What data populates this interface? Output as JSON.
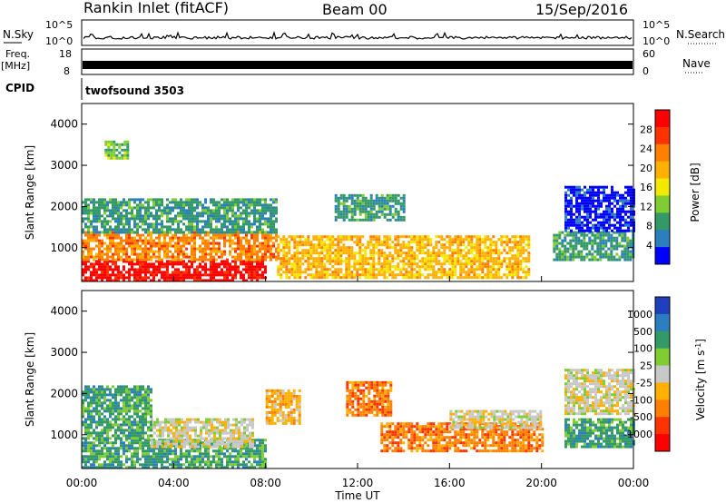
{
  "header": {
    "station": "Rankin Inlet (fitACF)",
    "beam": "Beam 00",
    "date": "15/Sep/2016"
  },
  "top_panels": {
    "nsky_label": "N.Sky",
    "nsearch_label": "N.Search",
    "nsky_ticks": [
      "10^5",
      "10^0"
    ],
    "nsky_right_ticks": [
      "10^5",
      "10^0"
    ],
    "freq_label_line1": "Freq.",
    "freq_label_line2": "[MHz]",
    "freq_ticks": [
      "18",
      "8"
    ],
    "nave_label": "Nave",
    "nave_ticks": [
      "60",
      "0"
    ],
    "cpid_label": "CPID",
    "cpid_value": "twofsound 3503"
  },
  "chart_data": [
    {
      "type": "heatmap",
      "title": "",
      "ylabel": "Slant Range [km]",
      "xlabel": "",
      "ylim": [
        180,
        4500
      ],
      "yticks": [
        "1000",
        "2000",
        "3000",
        "4000"
      ],
      "ytick_values": [
        1000,
        2000,
        3000,
        4000
      ],
      "colorbar_label": "Power [dB]",
      "colorbar_ticks": [
        "28",
        "24",
        "20",
        "16",
        "12",
        "8",
        "4"
      ],
      "colors": [
        "#ff0000",
        "#ff3300",
        "#ff7f00",
        "#ffb000",
        "#f2e800",
        "#80cc33",
        "#339966",
        "#2b7fbf",
        "#0000ff"
      ],
      "regions": [
        {
          "t": [
            0.0,
            8.0
          ],
          "r": [
            180,
            700
          ],
          "level": 0
        },
        {
          "t": [
            0.0,
            8.5
          ],
          "r": [
            700,
            1400
          ],
          "level": 2
        },
        {
          "t": [
            0.0,
            8.5
          ],
          "r": [
            1400,
            2200
          ],
          "level": 6
        },
        {
          "t": [
            1.0,
            2.0
          ],
          "r": [
            3200,
            3600
          ],
          "level": 5
        },
        {
          "t": [
            8.5,
            19.5
          ],
          "r": [
            300,
            1300
          ],
          "level": 3
        },
        {
          "t": [
            11.0,
            14.0
          ],
          "r": [
            1700,
            2300
          ],
          "level": 6
        },
        {
          "t": [
            20.5,
            24.0
          ],
          "r": [
            700,
            1400
          ],
          "level": 6
        },
        {
          "t": [
            21.0,
            24.0
          ],
          "r": [
            1400,
            2500
          ],
          "level": 8
        }
      ]
    },
    {
      "type": "heatmap",
      "title": "",
      "ylabel": "Slant Range [km]",
      "xlabel": "Time UT",
      "xlim": [
        0,
        24
      ],
      "ylim": [
        180,
        4500
      ],
      "xticks": [
        "00:00",
        "04:00",
        "08:00",
        "12:00",
        "16:00",
        "20:00",
        "00:00"
      ],
      "xtick_values": [
        0,
        4,
        8,
        12,
        16,
        20,
        24
      ],
      "yticks": [
        "1000",
        "2000",
        "3000",
        "4000"
      ],
      "ytick_values": [
        1000,
        2000,
        3000,
        4000
      ],
      "colorbar_label": "Velocity [m s^-1]",
      "colorbar_ticks": [
        "1000",
        "500",
        "100",
        "25",
        "-25",
        "-100",
        "-500",
        "-1000"
      ],
      "colors": [
        "#1f3fbf",
        "#2b7fbf",
        "#339966",
        "#80cc33",
        "#c8c8c8",
        "#ffb000",
        "#ff7f00",
        "#ff3300",
        "#ff0000"
      ],
      "regions": [
        {
          "t": [
            0.0,
            8.0
          ],
          "r": [
            180,
            900
          ],
          "level": 2
        },
        {
          "t": [
            3.0,
            7.5
          ],
          "r": [
            700,
            1400
          ],
          "level": 4
        },
        {
          "t": [
            0.0,
            3.0
          ],
          "r": [
            900,
            2200
          ],
          "level": 2
        },
        {
          "t": [
            8.0,
            9.5
          ],
          "r": [
            1300,
            2100
          ],
          "level": 5
        },
        {
          "t": [
            11.5,
            13.5
          ],
          "r": [
            1500,
            2300
          ],
          "level": 6
        },
        {
          "t": [
            13.0,
            20.0
          ],
          "r": [
            600,
            1300
          ],
          "level": 6
        },
        {
          "t": [
            16.0,
            20.0
          ],
          "r": [
            1200,
            1600
          ],
          "level": 4
        },
        {
          "t": [
            21.0,
            24.0
          ],
          "r": [
            700,
            1400
          ],
          "level": 2
        },
        {
          "t": [
            21.0,
            24.0
          ],
          "r": [
            1500,
            2600
          ],
          "level": 4
        }
      ]
    }
  ]
}
